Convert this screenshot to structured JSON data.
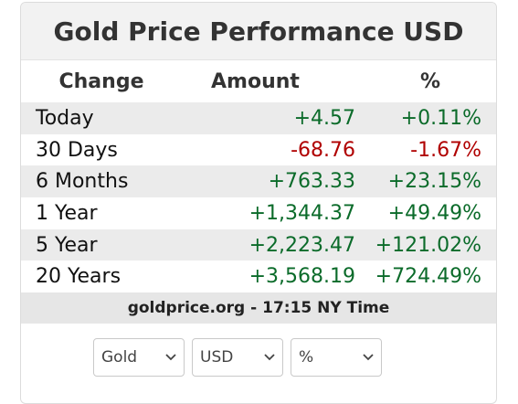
{
  "title": "Gold Price Performance USD",
  "headers": {
    "change": "Change",
    "amount": "Amount",
    "percent": "%"
  },
  "rows": [
    {
      "label": "Today",
      "amount": "+4.57",
      "percent": "+0.11%",
      "direction": "positive"
    },
    {
      "label": "30 Days",
      "amount": "-68.76",
      "percent": "-1.67%",
      "direction": "negative"
    },
    {
      "label": "6 Months",
      "amount": "+763.33",
      "percent": "+23.15%",
      "direction": "positive"
    },
    {
      "label": "1 Year",
      "amount": "+1,344.37",
      "percent": "+49.49%",
      "direction": "positive"
    },
    {
      "label": "5 Year",
      "amount": "+2,223.47",
      "percent": "+121.02%",
      "direction": "positive"
    },
    {
      "label": "20 Years",
      "amount": "+3,568.19",
      "percent": "+724.49%",
      "direction": "positive"
    }
  ],
  "footer": "goldprice.org - 17:15 NY Time",
  "selects": {
    "metal": "Gold",
    "currency": "USD",
    "unit": "%"
  },
  "colors": {
    "positive": "#0b6b2a",
    "negative": "#b00000"
  },
  "icons": {
    "dropdown": "chevron-down-icon"
  }
}
